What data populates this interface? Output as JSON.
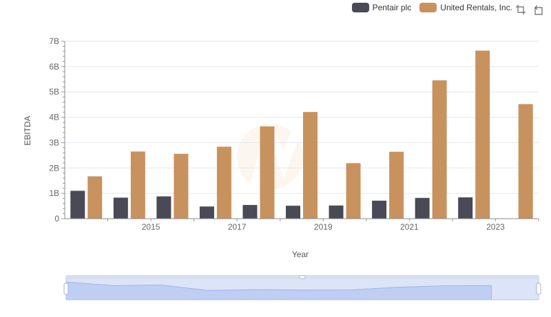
{
  "legend": [
    {
      "name": "Pentair plc",
      "color": "#4a4a56"
    },
    {
      "name": "United Rentals, Inc.",
      "color": "#c8925e"
    }
  ],
  "toolbox": {
    "zoom_icon": "zoom-icon",
    "reset_icon": "restore-icon"
  },
  "chart_data": {
    "type": "bar",
    "title": "",
    "xlabel": "Year",
    "ylabel": "EBITDA",
    "x": [
      2014,
      2015,
      2016,
      2017,
      2018,
      2019,
      2020,
      2021,
      2022,
      2023,
      2024
    ],
    "x_tick_labels": [
      "2015",
      "2017",
      "2019",
      "2021",
      "2023"
    ],
    "y_tick_labels": [
      "0",
      "1B",
      "2B",
      "3B",
      "4B",
      "5B",
      "6B",
      "7B"
    ],
    "ylim": [
      0,
      7000000000
    ],
    "grid": true,
    "legend_position": "top-right",
    "series": [
      {
        "name": "Pentair plc",
        "color": "#4a4a56",
        "values": [
          1100000000,
          830000000,
          880000000,
          480000000,
          540000000,
          510000000,
          520000000,
          710000000,
          820000000,
          840000000,
          null
        ]
      },
      {
        "name": "United Rentals, Inc.",
        "color": "#c8925e",
        "values": [
          1670000000,
          2650000000,
          2560000000,
          2840000000,
          3640000000,
          4210000000,
          2190000000,
          2640000000,
          5460000000,
          6630000000,
          4520000000
        ]
      }
    ],
    "zoom_slider": {
      "start_fraction": 0,
      "end_fraction": 1
    }
  }
}
